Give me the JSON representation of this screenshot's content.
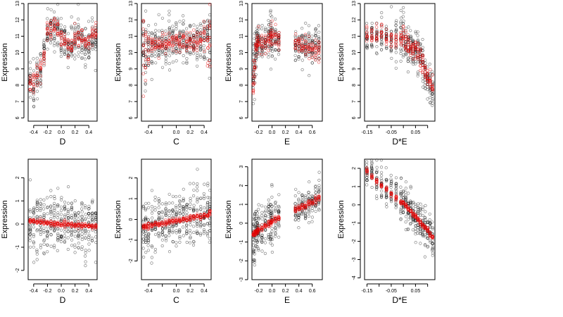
{
  "colors": {
    "observed": "#000000",
    "fitted": "#e00000",
    "background": "#ffffff"
  },
  "chart_data": [
    {
      "type": "scatter",
      "xlabel": "D",
      "ylabel": "Expression",
      "xticks": [
        -0.4,
        -0.2,
        0.0,
        0.2,
        0.4
      ],
      "xtick_labels": [
        "-0.4",
        "-0.2",
        "0.0",
        "0.2",
        "0.4"
      ],
      "yticks": [
        6,
        7,
        8,
        9,
        10,
        11,
        12,
        13
      ],
      "xlim": [
        -0.48,
        0.52
      ],
      "ylim": [
        5.8,
        13.0
      ],
      "clusters_x": [
        -0.45,
        -0.4,
        -0.35,
        -0.3,
        -0.25,
        -0.2,
        -0.15,
        -0.1,
        -0.05,
        0.0,
        0.05,
        0.1,
        0.15,
        0.2,
        0.25,
        0.3,
        0.35,
        0.4,
        0.45,
        0.5
      ],
      "observed_center": [
        8.4,
        8.0,
        8.6,
        9.0,
        9.8,
        11.2,
        11.3,
        11.4,
        11.5,
        11.0,
        10.6,
        10.3,
        10.5,
        10.8,
        10.9,
        11.0,
        10.4,
        10.6,
        11.0,
        10.8
      ],
      "observed_spread": [
        0.9,
        1.0,
        0.9,
        0.8,
        0.8,
        0.7,
        0.7,
        0.7,
        0.8,
        0.9,
        0.8,
        0.7,
        0.7,
        0.7,
        0.7,
        0.7,
        0.8,
        0.8,
        0.7,
        0.7
      ],
      "fitted_center": [
        8.3,
        8.2,
        8.6,
        9.1,
        9.7,
        11.3,
        11.4,
        11.5,
        11.4,
        10.9,
        10.7,
        10.3,
        10.4,
        10.8,
        10.9,
        10.9,
        10.5,
        10.7,
        11.0,
        11.2
      ],
      "fitted_spread": [
        0.3,
        0.3,
        0.3,
        0.3,
        0.3,
        0.3,
        0.3,
        0.3,
        0.3,
        0.3,
        0.3,
        0.3,
        0.3,
        0.3,
        0.3,
        0.3,
        0.3,
        0.3,
        0.3,
        0.3
      ]
    },
    {
      "type": "scatter",
      "xlabel": "C",
      "ylabel": "Expression",
      "xticks": [
        -0.4,
        -0.2,
        0.0,
        0.2,
        0.4
      ],
      "xtick_labels": [
        "-0.4",
        "",
        "0.0",
        "0.2",
        "0.4"
      ],
      "yticks": [
        6,
        7,
        8,
        9,
        10,
        11,
        12,
        13
      ],
      "xlim": [
        -0.5,
        0.5
      ],
      "ylim": [
        5.8,
        13.0
      ],
      "clusters_x": [
        -0.47,
        -0.44,
        -0.4,
        -0.35,
        -0.3,
        -0.25,
        -0.2,
        -0.15,
        -0.1,
        -0.05,
        0.0,
        0.05,
        0.1,
        0.15,
        0.2,
        0.25,
        0.3,
        0.35,
        0.4,
        0.45,
        0.48
      ],
      "observed_center": [
        10.2,
        10.0,
        10.2,
        10.4,
        10.5,
        10.6,
        10.4,
        10.3,
        10.6,
        10.5,
        10.4,
        10.6,
        10.7,
        10.5,
        10.6,
        10.8,
        10.7,
        10.8,
        10.6,
        10.9,
        10.5
      ],
      "observed_spread": [
        1.4,
        1.3,
        1.0,
        0.9,
        0.8,
        0.9,
        0.8,
        0.8,
        0.9,
        0.8,
        0.9,
        0.8,
        0.8,
        0.8,
        0.8,
        0.8,
        0.9,
        0.9,
        0.9,
        1.0,
        1.4
      ],
      "fitted_center": [
        10.3,
        10.2,
        10.3,
        10.4,
        10.5,
        10.5,
        10.5,
        10.5,
        10.6,
        10.6,
        10.6,
        10.6,
        10.7,
        10.7,
        10.7,
        10.8,
        10.8,
        10.8,
        10.9,
        10.9,
        10.7
      ],
      "fitted_spread": [
        1.2,
        1.0,
        0.5,
        0.3,
        0.3,
        0.3,
        0.3,
        0.3,
        0.3,
        0.3,
        0.3,
        0.3,
        0.3,
        0.3,
        0.3,
        0.3,
        0.3,
        0.4,
        0.5,
        0.9,
        1.2
      ]
    },
    {
      "type": "scatter",
      "xlabel": "E",
      "ylabel": "Expression",
      "xticks": [
        -0.2,
        0.0,
        0.2,
        0.4,
        0.6
      ],
      "xtick_labels": [
        "-0.2",
        "0.0",
        "0.2",
        "0.4",
        "0.6"
      ],
      "yticks": [
        6,
        7,
        8,
        9,
        10,
        11,
        12,
        13
      ],
      "xlim": [
        -0.3,
        0.75
      ],
      "ylim": [
        5.8,
        13.0
      ],
      "clusters_x": [
        -0.28,
        -0.26,
        -0.24,
        -0.22,
        -0.2,
        -0.15,
        -0.1,
        -0.05,
        -0.02,
        0.0,
        0.05,
        0.1,
        0.35,
        0.4,
        0.45,
        0.5,
        0.55,
        0.6,
        0.65,
        0.7
      ],
      "observed_center": [
        8.6,
        9.4,
        10.2,
        10.6,
        10.5,
        10.6,
        10.7,
        10.8,
        10.9,
        11.0,
        10.9,
        10.7,
        10.5,
        10.4,
        10.3,
        10.6,
        10.4,
        10.2,
        10.5,
        10.3
      ],
      "observed_spread": [
        1.4,
        1.2,
        0.8,
        0.7,
        0.7,
        0.6,
        0.6,
        0.7,
        0.8,
        0.9,
        0.8,
        0.6,
        0.6,
        0.6,
        0.6,
        0.6,
        0.6,
        0.6,
        0.7,
        0.7
      ],
      "fitted_center": [
        8.3,
        9.2,
        10.1,
        10.5,
        10.6,
        10.6,
        10.7,
        10.8,
        11.0,
        11.1,
        10.9,
        10.7,
        10.6,
        10.5,
        10.4,
        10.6,
        10.4,
        10.2,
        10.3,
        10.2
      ],
      "fitted_spread": [
        0.6,
        0.5,
        0.4,
        0.3,
        0.3,
        0.3,
        0.3,
        0.3,
        0.3,
        0.4,
        0.3,
        0.3,
        0.3,
        0.3,
        0.3,
        0.3,
        0.3,
        0.3,
        0.3,
        0.3
      ]
    },
    {
      "type": "scatter",
      "xlabel": "D*E",
      "ylabel": "Expression",
      "xticks": [
        -0.15,
        -0.1,
        -0.05,
        0.0,
        0.05,
        0.1
      ],
      "xtick_labels": [
        "-0.15",
        "",
        "-0.05",
        "",
        "0.05",
        ""
      ],
      "yticks": [
        6,
        7,
        8,
        9,
        10,
        11,
        12,
        13
      ],
      "xlim": [
        -0.16,
        0.13
      ],
      "ylim": [
        5.8,
        13.0
      ],
      "clusters_x": [
        -0.15,
        -0.13,
        -0.11,
        -0.09,
        -0.07,
        -0.05,
        -0.03,
        -0.01,
        0.0,
        0.01,
        0.02,
        0.03,
        0.04,
        0.05,
        0.06,
        0.07,
        0.08,
        0.09,
        0.1,
        0.11,
        0.12
      ],
      "observed_center": [
        11.0,
        11.1,
        11.0,
        11.2,
        11.0,
        10.9,
        10.8,
        10.9,
        11.1,
        10.6,
        10.5,
        10.3,
        10.1,
        10.2,
        10.0,
        9.6,
        9.2,
        8.8,
        8.4,
        8.0,
        7.7
      ],
      "observed_spread": [
        0.6,
        0.6,
        0.6,
        0.6,
        0.6,
        0.7,
        0.7,
        0.8,
        1.0,
        0.8,
        0.7,
        0.7,
        0.7,
        0.8,
        0.7,
        0.7,
        0.7,
        0.7,
        0.7,
        0.7,
        0.7
      ],
      "fitted_center": [
        11.1,
        11.0,
        11.1,
        11.1,
        11.0,
        10.9,
        10.8,
        10.9,
        11.0,
        10.7,
        10.5,
        10.3,
        10.2,
        10.2,
        10.0,
        9.7,
        9.3,
        8.9,
        8.5,
        8.1,
        7.8
      ],
      "fitted_spread": [
        0.3,
        0.3,
        0.3,
        0.3,
        0.3,
        0.3,
        0.3,
        0.3,
        0.4,
        0.3,
        0.3,
        0.3,
        0.3,
        0.3,
        0.3,
        0.3,
        0.3,
        0.3,
        0.3,
        0.3,
        0.3
      ]
    },
    {
      "type": "scatter",
      "xlabel": "D",
      "ylabel": "Expression",
      "xticks": [
        -0.4,
        -0.2,
        0.0,
        0.2,
        0.4
      ],
      "xtick_labels": [
        "-0.4",
        "-0.2",
        "0.0",
        "0.2",
        "0.4"
      ],
      "yticks": [
        -2,
        -1,
        0,
        1,
        2
      ],
      "xlim": [
        -0.48,
        0.52
      ],
      "ylim": [
        -2.4,
        2.8
      ],
      "clusters_x": [
        -0.45,
        -0.4,
        -0.35,
        -0.3,
        -0.25,
        -0.2,
        -0.15,
        -0.1,
        -0.05,
        0.0,
        0.05,
        0.1,
        0.15,
        0.2,
        0.25,
        0.3,
        0.35,
        0.4,
        0.45,
        0.5
      ],
      "observed_center": [
        0.1,
        0.0,
        0.1,
        -0.1,
        0.1,
        0.0,
        0.1,
        0.1,
        -0.1,
        0.0,
        0.1,
        0.0,
        -0.1,
        0.0,
        -0.1,
        0.0,
        -0.1,
        0.0,
        -0.1,
        -0.1
      ],
      "observed_spread": [
        0.9,
        0.9,
        0.8,
        0.8,
        0.8,
        0.8,
        0.8,
        0.8,
        0.8,
        0.8,
        0.8,
        0.8,
        0.8,
        0.8,
        0.8,
        0.8,
        0.8,
        0.8,
        0.8,
        0.8
      ],
      "fitted_center": [
        0.15,
        0.13,
        0.11,
        0.09,
        0.07,
        0.05,
        0.04,
        0.02,
        0.0,
        -0.01,
        -0.02,
        -0.03,
        -0.04,
        -0.05,
        -0.06,
        -0.07,
        -0.08,
        -0.09,
        -0.1,
        -0.11
      ],
      "fitted_spread": [
        0.05,
        0.05,
        0.05,
        0.05,
        0.05,
        0.05,
        0.05,
        0.05,
        0.05,
        0.05,
        0.05,
        0.05,
        0.05,
        0.05,
        0.05,
        0.05,
        0.05,
        0.05,
        0.05,
        0.05
      ]
    },
    {
      "type": "scatter",
      "xlabel": "C",
      "ylabel": "Expression",
      "xticks": [
        -0.4,
        -0.2,
        0.0,
        0.2,
        0.4
      ],
      "xtick_labels": [
        "-0.4",
        "",
        "0.0",
        "0.2",
        "0.4"
      ],
      "yticks": [
        -2,
        -1,
        0,
        1,
        2
      ],
      "xlim": [
        -0.5,
        0.5
      ],
      "ylim": [
        -2.9,
        2.9
      ],
      "clusters_x": [
        -0.47,
        -0.44,
        -0.4,
        -0.35,
        -0.3,
        -0.25,
        -0.2,
        -0.15,
        -0.1,
        -0.05,
        0.0,
        0.05,
        0.1,
        0.15,
        0.2,
        0.25,
        0.3,
        0.35,
        0.4,
        0.45,
        0.48
      ],
      "observed_center": [
        -0.4,
        -0.3,
        -0.3,
        -0.2,
        -0.2,
        -0.1,
        -0.1,
        0.0,
        -0.1,
        0.0,
        0.0,
        0.1,
        0.2,
        0.1,
        0.2,
        0.2,
        0.3,
        0.2,
        0.3,
        0.4,
        0.3
      ],
      "observed_spread": [
        0.9,
        0.8,
        0.8,
        0.8,
        0.8,
        0.8,
        0.8,
        0.8,
        0.8,
        0.8,
        0.8,
        0.8,
        0.8,
        0.8,
        0.8,
        0.8,
        0.8,
        0.8,
        0.8,
        0.9,
        0.9
      ],
      "fitted_center": [
        -0.35,
        -0.33,
        -0.3,
        -0.27,
        -0.24,
        -0.21,
        -0.18,
        -0.15,
        -0.12,
        -0.09,
        -0.06,
        -0.03,
        0.0,
        0.03,
        0.06,
        0.09,
        0.12,
        0.15,
        0.18,
        0.21,
        0.35
      ],
      "fitted_spread": [
        0.06,
        0.06,
        0.06,
        0.06,
        0.06,
        0.06,
        0.06,
        0.06,
        0.06,
        0.06,
        0.06,
        0.06,
        0.06,
        0.06,
        0.06,
        0.06,
        0.06,
        0.06,
        0.06,
        0.06,
        0.06
      ]
    },
    {
      "type": "scatter",
      "xlabel": "E",
      "ylabel": "Expression",
      "xticks": [
        -0.2,
        0.0,
        0.2,
        0.4,
        0.6
      ],
      "xtick_labels": [
        "-0.2",
        "0.0",
        "0.2",
        "0.4",
        "0.6"
      ],
      "yticks": [
        -3,
        -2,
        -1,
        0,
        1,
        2,
        3
      ],
      "xlim": [
        -0.3,
        0.75
      ],
      "ylim": [
        -3.0,
        3.4
      ],
      "clusters_x": [
        -0.28,
        -0.26,
        -0.24,
        -0.22,
        -0.2,
        -0.15,
        -0.1,
        -0.05,
        -0.02,
        0.0,
        0.05,
        0.1,
        0.35,
        0.4,
        0.45,
        0.5,
        0.55,
        0.6,
        0.65,
        0.7
      ],
      "observed_center": [
        -0.8,
        -0.6,
        -0.5,
        -0.4,
        -0.3,
        -0.2,
        -0.1,
        0.0,
        0.2,
        0.2,
        0.3,
        0.4,
        0.7,
        0.8,
        0.9,
        1.0,
        1.1,
        1.1,
        1.2,
        1.4
      ],
      "observed_spread": [
        1.0,
        0.9,
        0.8,
        0.8,
        0.8,
        0.8,
        0.8,
        0.8,
        0.9,
        1.0,
        0.7,
        0.5,
        0.6,
        0.6,
        0.6,
        0.6,
        0.6,
        0.6,
        0.6,
        0.6
      ],
      "fitted_center": [
        -0.6,
        -0.55,
        -0.48,
        -0.42,
        -0.35,
        -0.25,
        -0.12,
        -0.02,
        0.08,
        0.12,
        0.2,
        0.3,
        0.72,
        0.8,
        0.88,
        0.96,
        1.05,
        1.13,
        1.22,
        1.35
      ],
      "fitted_spread": [
        0.08,
        0.08,
        0.08,
        0.08,
        0.08,
        0.08,
        0.08,
        0.08,
        0.08,
        0.08,
        0.08,
        0.08,
        0.08,
        0.08,
        0.08,
        0.08,
        0.08,
        0.08,
        0.08,
        0.08
      ]
    },
    {
      "type": "scatter",
      "xlabel": "D*E",
      "ylabel": "Expression",
      "xticks": [
        -0.15,
        -0.1,
        -0.05,
        0.0,
        0.05,
        0.1
      ],
      "xtick_labels": [
        "-0.15",
        "",
        "-0.05",
        "",
        "0.05",
        ""
      ],
      "yticks": [
        -4,
        -3,
        -2,
        -1,
        0,
        1,
        2
      ],
      "xlim": [
        -0.16,
        0.13
      ],
      "ylim": [
        -4.1,
        2.5
      ],
      "clusters_x": [
        -0.15,
        -0.13,
        -0.11,
        -0.09,
        -0.07,
        -0.05,
        -0.03,
        -0.01,
        0.0,
        0.01,
        0.02,
        0.03,
        0.04,
        0.05,
        0.06,
        0.07,
        0.08,
        0.09,
        0.1,
        0.11,
        0.12
      ],
      "observed_center": [
        1.9,
        1.6,
        1.4,
        1.1,
        0.9,
        0.7,
        0.5,
        0.2,
        0.2,
        0.0,
        -0.2,
        -0.3,
        -0.5,
        -0.7,
        -0.8,
        -1.0,
        -1.2,
        -1.4,
        -1.5,
        -1.7,
        -1.9
      ],
      "observed_spread": [
        0.5,
        0.5,
        0.5,
        0.6,
        0.6,
        0.6,
        0.6,
        0.7,
        0.9,
        0.7,
        0.6,
        0.6,
        0.6,
        0.6,
        0.6,
        0.6,
        0.6,
        0.6,
        0.6,
        0.6,
        0.6
      ],
      "fitted_center": [
        1.85,
        1.55,
        1.3,
        1.05,
        0.85,
        0.6,
        0.4,
        0.15,
        0.1,
        -0.05,
        -0.2,
        -0.35,
        -0.5,
        -0.65,
        -0.8,
        -0.95,
        -1.1,
        -1.25,
        -1.4,
        -1.6,
        -1.8
      ],
      "fitted_spread": [
        0.06,
        0.06,
        0.06,
        0.06,
        0.06,
        0.06,
        0.06,
        0.06,
        0.06,
        0.06,
        0.06,
        0.06,
        0.06,
        0.06,
        0.06,
        0.06,
        0.06,
        0.06,
        0.06,
        0.06,
        0.06
      ]
    }
  ]
}
